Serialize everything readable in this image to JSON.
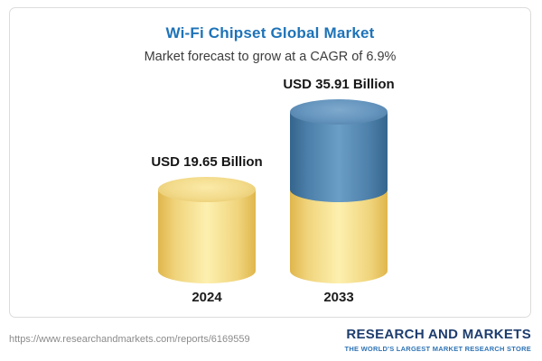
{
  "chart_data": {
    "type": "bar",
    "subtype": "cylinder-3d",
    "title": "Wi-Fi Chipset Global Market",
    "subtitle": "Market forecast to grow at a CAGR of 6.9%",
    "cagr_percent": 6.9,
    "categories": [
      "2024",
      "2033"
    ],
    "values": [
      19.65,
      35.91
    ],
    "value_labels": [
      "USD 19.65 Billion",
      "USD 35.91 Billion"
    ],
    "unit": "USD Billion",
    "ylim": [
      0,
      40
    ],
    "grid": false,
    "legend": false,
    "colors": {
      "base_segment": "#F0D47C",
      "growth_segment": "#4C7FA9"
    },
    "stacking_note": "2033 cylinder is stacked: bottom yellow segment equals the 2024 value (19.65), top blue segment is the growth to 35.91"
  },
  "footer": {
    "url": "https://www.researchandmarkets.com/reports/6169559",
    "logo_text": "RESEARCH AND MARKETS",
    "logo_tagline": "THE WORLD'S LARGEST MARKET RESEARCH STORE"
  }
}
